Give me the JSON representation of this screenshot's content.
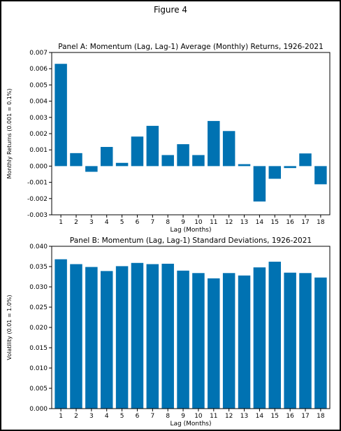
{
  "figure_title": "Figure 4",
  "colors": {
    "bar": "#0072b2"
  },
  "chart_data": [
    {
      "type": "bar",
      "title": "Panel A: Momentum (Lag, Lag-1) Average (Monthly) Returns, 1926-2021",
      "xlabel": "Lag (Months)",
      "ylabel": "Monthly Returns (0.001 = 0.1%)",
      "categories": [
        "1",
        "2",
        "3",
        "4",
        "5",
        "6",
        "7",
        "8",
        "9",
        "10",
        "11",
        "12",
        "13",
        "14",
        "15",
        "16",
        "17",
        "18"
      ],
      "values": [
        0.0063,
        0.0008,
        -0.00035,
        0.00118,
        0.0002,
        0.00182,
        0.00248,
        0.00068,
        0.00135,
        0.00068,
        0.00278,
        0.00216,
        0.00012,
        -0.00218,
        -0.00078,
        -0.00012,
        0.00078,
        -0.00112
      ],
      "ylim": [
        -0.003,
        0.007
      ],
      "yticks": [
        "-0.003",
        "-0.002",
        "-0.001",
        "0.000",
        "0.001",
        "0.002",
        "0.003",
        "0.004",
        "0.005",
        "0.006",
        "0.007"
      ],
      "grid": false
    },
    {
      "type": "bar",
      "title": "Panel B: Momentum (Lag, Lag-1) Standard Deviations, 1926-2021",
      "xlabel": "Lag (Months)",
      "ylabel": "Volatility (0.01 = 1.0%)",
      "categories": [
        "1",
        "2",
        "3",
        "4",
        "5",
        "6",
        "7",
        "8",
        "9",
        "10",
        "11",
        "12",
        "13",
        "14",
        "15",
        "16",
        "17",
        "18"
      ],
      "values": [
        0.0368,
        0.0356,
        0.0349,
        0.0339,
        0.0351,
        0.0359,
        0.0356,
        0.0357,
        0.034,
        0.0334,
        0.0321,
        0.0334,
        0.0328,
        0.0348,
        0.0362,
        0.0335,
        0.0334,
        0.0323
      ],
      "ylim": [
        0.0,
        0.04
      ],
      "yticks": [
        "0.000",
        "0.005",
        "0.010",
        "0.015",
        "0.020",
        "0.025",
        "0.030",
        "0.035",
        "0.040"
      ],
      "grid": false
    }
  ]
}
